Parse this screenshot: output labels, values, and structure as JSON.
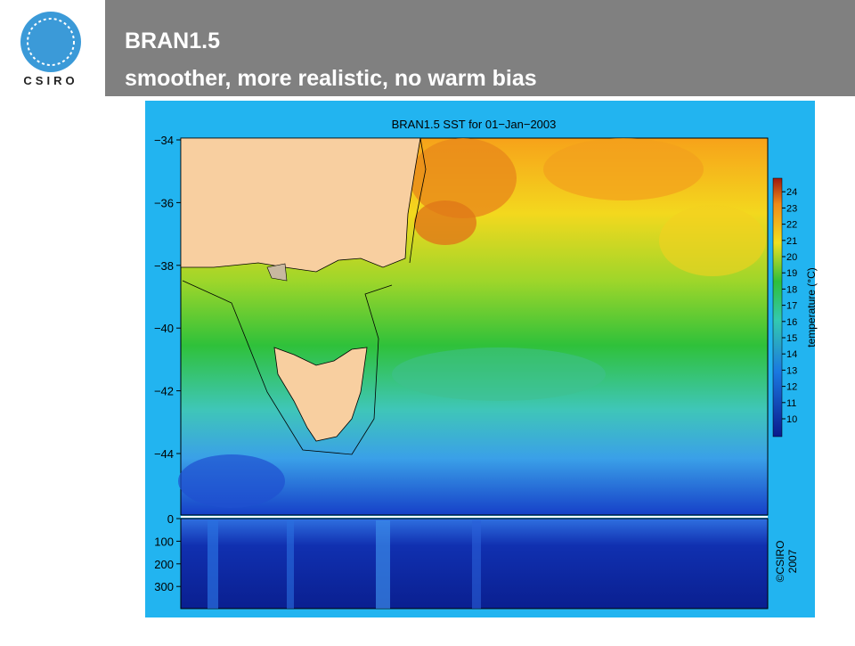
{
  "header": {
    "logo_text": "CSIRO",
    "title_line1": "BRAN1.5",
    "title_line2": "smoother, more realistic, no warm bias"
  },
  "figure": {
    "title": "BRAN1.5 SST for 01−Jan−2003",
    "latitude_ticks": [
      "−34",
      "−36",
      "−38",
      "−40",
      "−42",
      "−44"
    ],
    "depth_ticks": [
      "0",
      "100",
      "200",
      "300"
    ],
    "colorbar_ticks": [
      "10",
      "11",
      "12",
      "13",
      "14",
      "15",
      "16",
      "17",
      "18",
      "19",
      "20",
      "21",
      "22",
      "23",
      "24"
    ],
    "colorbar_label": "temperature (°C)",
    "copyright_line1": "©CSIRO",
    "copyright_line2": "2007"
  }
}
